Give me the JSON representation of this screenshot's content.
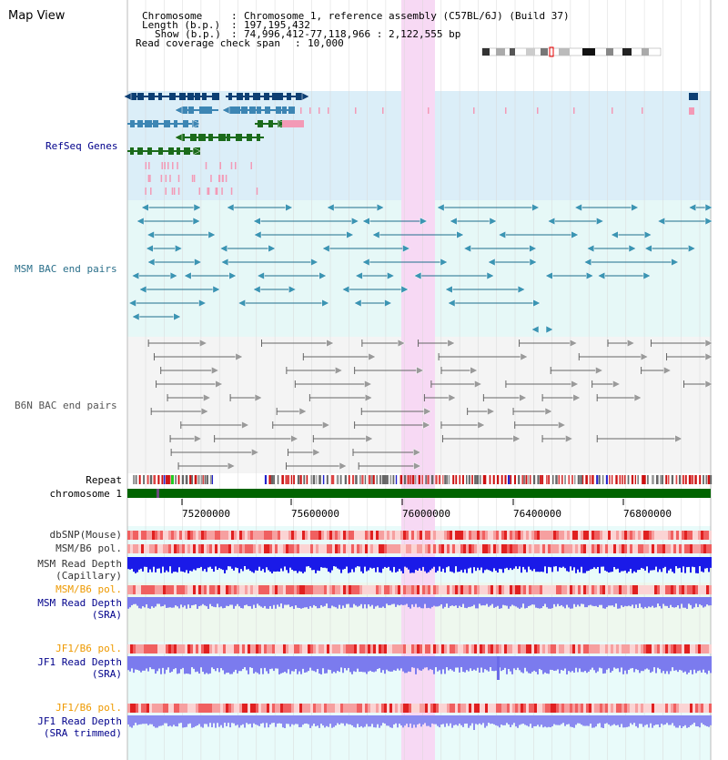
{
  "view_title": "Map View",
  "info": {
    "chromosome_key": "Chromosome",
    "chromosome_val": "Chromosome 1, reference assembly (C57BL/6J) (Build 37)",
    "length_key": "Length (b.p.)",
    "length_val": "197,195,432",
    "show_key": "Show (b.p.)",
    "show_val": "74,996,412-77,118,966 : 2,122,555 bp",
    "span_key": "Read coverage check span",
    "span_val": "10,000"
  },
  "tracks": {
    "refseq": "RefSeq Genes",
    "msm_bac": "MSM BAC end pairs",
    "b6n_bac": "B6N BAC end pairs",
    "repeat": "Repeat",
    "chromosome": "chromosome 1",
    "dbsnp": "dbSNP(Mouse)",
    "msm_pol": "MSM/B6 pol.",
    "msm_depth_cap_1": "MSM Read Depth",
    "msm_depth_cap_2": "(Capillary)",
    "msm_pol_sra": "MSM/B6 pol.",
    "msm_depth_sra_1": "MSM Read Depth",
    "msm_depth_sra_2": "(SRA)",
    "jf1_pol": "JF1/B6 pol.",
    "jf1_depth_1": "JF1 Read Depth",
    "jf1_depth_2": "(SRA)",
    "jf1_pol_trim": "JF1/B6 pol.",
    "jf1_depth_trim_1": "JF1 Read Depth",
    "jf1_depth_trim_2": "(SRA trimmed)"
  },
  "ruler": {
    "ticks": [
      "75200000",
      "75600000",
      "76000000",
      "76400000",
      "76800000"
    ]
  },
  "colors": {
    "refseq_bg": "#dbeef8",
    "bac_bg": "#e6f8f7",
    "highlight": "#f7d9f4",
    "chromosome_bar": "#006400",
    "depth_blue_strong": "#2020e0",
    "depth_blue_light": "#7b7bee",
    "pol_red": "#ee4444",
    "label_blue": "#00008b",
    "label_teal": "#2a6f8a",
    "label_orange": "#ee9900"
  }
}
